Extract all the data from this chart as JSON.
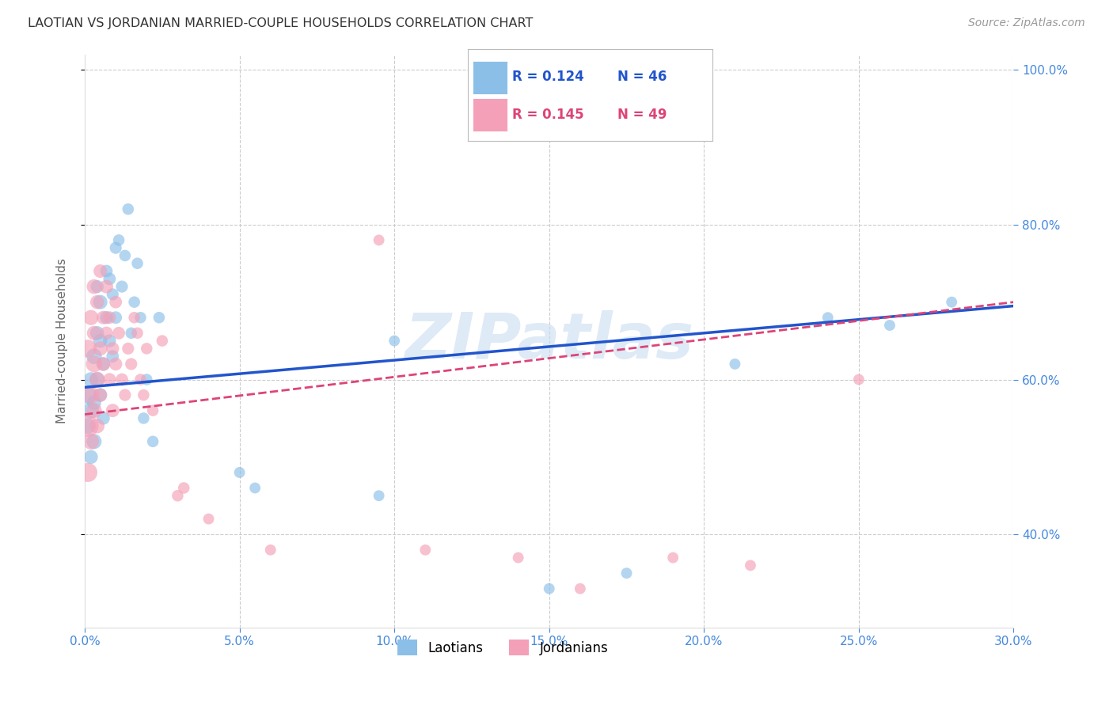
{
  "title": "LAOTIAN VS JORDANIAN MARRIED-COUPLE HOUSEHOLDS CORRELATION CHART",
  "source": "Source: ZipAtlas.com",
  "ylabel": "Married-couple Households",
  "xlabel_laotian": "Laotians",
  "xlabel_jordanian": "Jordanians",
  "xlim": [
    0.0,
    0.3
  ],
  "ylim": [
    0.28,
    1.02
  ],
  "xticks": [
    0.0,
    0.05,
    0.1,
    0.15,
    0.2,
    0.25,
    0.3
  ],
  "yticks": [
    0.4,
    0.6,
    0.8,
    1.0
  ],
  "ytick_labels": [
    "40.0%",
    "60.0%",
    "80.0%",
    "100.0%"
  ],
  "xtick_labels": [
    "0.0%",
    "5.0%",
    "10.0%",
    "15.0%",
    "20.0%",
    "25.0%",
    "30.0%"
  ],
  "legend_r_blue": "R = 0.124",
  "legend_n_blue": "N = 46",
  "legend_r_pink": "R = 0.145",
  "legend_n_pink": "N = 49",
  "blue_color": "#8BBFE8",
  "pink_color": "#F4A0B8",
  "trend_blue": "#2255CC",
  "trend_pink": "#DD4477",
  "watermark": "ZIPatlas",
  "watermark_color": "#C8DCF0",
  "axis_label_color": "#4488DD",
  "background_color": "#FFFFFF",
  "blue_trend_x0": 0.0,
  "blue_trend_y0": 0.59,
  "blue_trend_x1": 0.3,
  "blue_trend_y1": 0.695,
  "pink_trend_x0": 0.0,
  "pink_trend_y0": 0.555,
  "pink_trend_x1": 0.3,
  "pink_trend_y1": 0.7,
  "laotian_x": [
    0.001,
    0.001,
    0.002,
    0.002,
    0.002,
    0.003,
    0.003,
    0.003,
    0.004,
    0.004,
    0.004,
    0.005,
    0.005,
    0.005,
    0.006,
    0.006,
    0.007,
    0.007,
    0.008,
    0.008,
    0.009,
    0.009,
    0.01,
    0.01,
    0.011,
    0.012,
    0.013,
    0.014,
    0.015,
    0.016,
    0.017,
    0.018,
    0.019,
    0.02,
    0.022,
    0.024,
    0.05,
    0.055,
    0.095,
    0.1,
    0.15,
    0.175,
    0.21,
    0.24,
    0.26,
    0.28
  ],
  "laotian_y": [
    0.58,
    0.54,
    0.6,
    0.56,
    0.5,
    0.63,
    0.57,
    0.52,
    0.66,
    0.6,
    0.72,
    0.65,
    0.58,
    0.7,
    0.62,
    0.55,
    0.68,
    0.74,
    0.73,
    0.65,
    0.71,
    0.63,
    0.77,
    0.68,
    0.78,
    0.72,
    0.76,
    0.82,
    0.66,
    0.7,
    0.75,
    0.68,
    0.55,
    0.6,
    0.52,
    0.68,
    0.48,
    0.46,
    0.45,
    0.65,
    0.33,
    0.35,
    0.62,
    0.68,
    0.67,
    0.7
  ],
  "laotian_sizes": [
    250,
    200,
    180,
    220,
    160,
    200,
    170,
    190,
    160,
    180,
    140,
    160,
    150,
    170,
    150,
    140,
    140,
    130,
    130,
    140,
    120,
    130,
    120,
    130,
    110,
    120,
    110,
    110,
    110,
    110,
    110,
    110,
    110,
    110,
    110,
    110,
    100,
    100,
    100,
    100,
    100,
    100,
    100,
    100,
    100,
    100
  ],
  "jordanian_x": [
    0.001,
    0.001,
    0.001,
    0.002,
    0.002,
    0.002,
    0.003,
    0.003,
    0.003,
    0.003,
    0.004,
    0.004,
    0.004,
    0.005,
    0.005,
    0.005,
    0.006,
    0.006,
    0.007,
    0.007,
    0.008,
    0.008,
    0.009,
    0.009,
    0.01,
    0.01,
    0.011,
    0.012,
    0.013,
    0.014,
    0.015,
    0.016,
    0.017,
    0.018,
    0.019,
    0.02,
    0.022,
    0.025,
    0.03,
    0.032,
    0.04,
    0.06,
    0.095,
    0.11,
    0.14,
    0.16,
    0.19,
    0.215,
    0.25
  ],
  "jordanian_y": [
    0.54,
    0.48,
    0.64,
    0.58,
    0.52,
    0.68,
    0.62,
    0.56,
    0.72,
    0.66,
    0.6,
    0.54,
    0.7,
    0.64,
    0.58,
    0.74,
    0.68,
    0.62,
    0.66,
    0.72,
    0.6,
    0.68,
    0.64,
    0.56,
    0.7,
    0.62,
    0.66,
    0.6,
    0.58,
    0.64,
    0.62,
    0.68,
    0.66,
    0.6,
    0.58,
    0.64,
    0.56,
    0.65,
    0.45,
    0.46,
    0.42,
    0.38,
    0.78,
    0.38,
    0.37,
    0.33,
    0.37,
    0.36,
    0.6
  ],
  "jordanian_sizes": [
    380,
    300,
    260,
    240,
    210,
    190,
    220,
    200,
    180,
    170,
    200,
    180,
    160,
    170,
    160,
    150,
    150,
    160,
    140,
    150,
    140,
    130,
    140,
    150,
    130,
    140,
    130,
    130,
    120,
    120,
    120,
    110,
    110,
    110,
    110,
    110,
    110,
    110,
    110,
    110,
    100,
    100,
    100,
    100,
    100,
    100,
    100,
    100,
    100
  ]
}
